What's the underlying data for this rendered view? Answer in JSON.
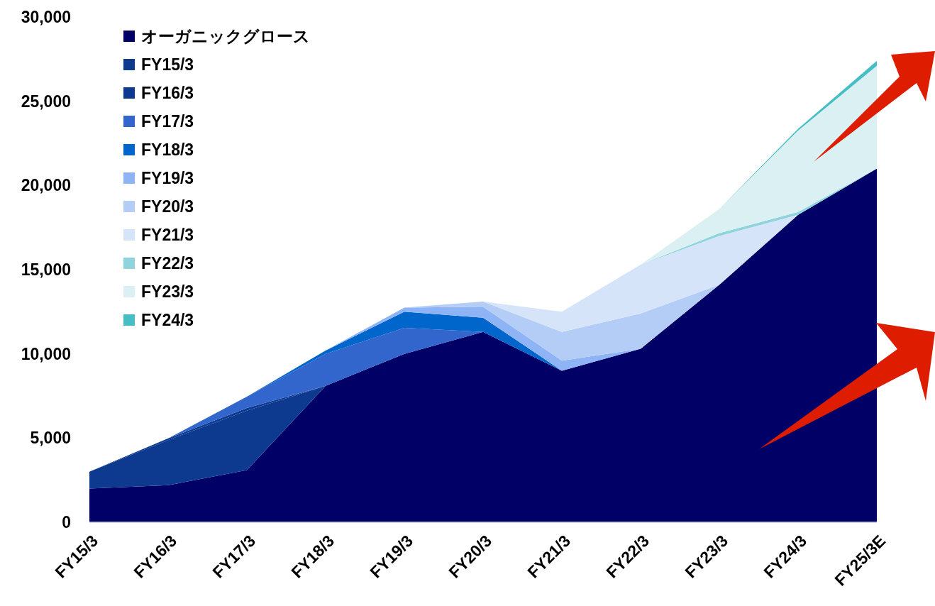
{
  "chart_data": {
    "type": "area",
    "stacked": true,
    "categories": [
      "FY15/3",
      "FY16/3",
      "FY17/3",
      "FY18/3",
      "FY19/3",
      "FY20/3",
      "FY21/3",
      "FY22/3",
      "FY23/3",
      "FY24/3",
      "FY25/3E"
    ],
    "ylim": [
      0,
      30000
    ],
    "yticks": [
      {
        "value": 0,
        "label": "0"
      },
      {
        "value": 5000,
        "label": "5,000"
      },
      {
        "value": 10000,
        "label": "10,000"
      },
      {
        "value": 15000,
        "label": "15,000"
      },
      {
        "value": 20000,
        "label": "20,000"
      },
      {
        "value": 25000,
        "label": "25,000"
      },
      {
        "value": 30000,
        "label": "30,000"
      }
    ],
    "grid": false,
    "legend": "top left",
    "series": [
      {
        "name": "オーガニックグロース",
        "color": "#000066",
        "values": [
          2000,
          2200,
          3100,
          8100,
          10000,
          11300,
          9000,
          10300,
          14100,
          18250,
          21000
        ]
      },
      {
        "name": "FY15/3",
        "color": "#0d3a8f",
        "values": [
          1000,
          2680,
          3530,
          0,
          null,
          null,
          null,
          null,
          null,
          null,
          null
        ]
      },
      {
        "name": "FY16/3",
        "color": "#0c3a90",
        "values": [
          0,
          100,
          150,
          0,
          null,
          null,
          null,
          null,
          null,
          null,
          null
        ]
      },
      {
        "name": "FY17/3",
        "color": "#3366cc",
        "values": [
          null,
          0,
          680,
          1900,
          1550,
          0,
          null,
          null,
          null,
          null,
          null
        ]
      },
      {
        "name": "FY18/3",
        "color": "#0066cc",
        "values": [
          null,
          null,
          0,
          200,
          950,
          850,
          0,
          null,
          null,
          null,
          null
        ]
      },
      {
        "name": "FY19/3",
        "color": "#8fb4f5",
        "values": [
          null,
          null,
          null,
          0,
          250,
          650,
          600,
          0,
          null,
          null,
          null
        ]
      },
      {
        "name": "FY20/3",
        "color": "#b3cdf7",
        "values": [
          null,
          null,
          null,
          null,
          0,
          300,
          1700,
          2100,
          0,
          null,
          null
        ]
      },
      {
        "name": "FY21/3",
        "color": "#d6e4fa",
        "values": [
          null,
          null,
          null,
          null,
          null,
          0,
          1200,
          2900,
          2900,
          0,
          null
        ]
      },
      {
        "name": "FY22/3",
        "color": "#8fd4dc",
        "values": [
          null,
          null,
          null,
          null,
          null,
          null,
          null,
          0,
          170,
          170,
          0
        ]
      },
      {
        "name": "FY23/3",
        "color": "#daf0f2",
        "values": [
          null,
          null,
          null,
          null,
          null,
          null,
          null,
          0,
          1430,
          4840,
          6100
        ]
      },
      {
        "name": "FY24/3",
        "color": "#45bec6",
        "values": [
          null,
          null,
          null,
          null,
          null,
          null,
          null,
          null,
          0,
          100,
          300
        ]
      }
    ]
  }
}
